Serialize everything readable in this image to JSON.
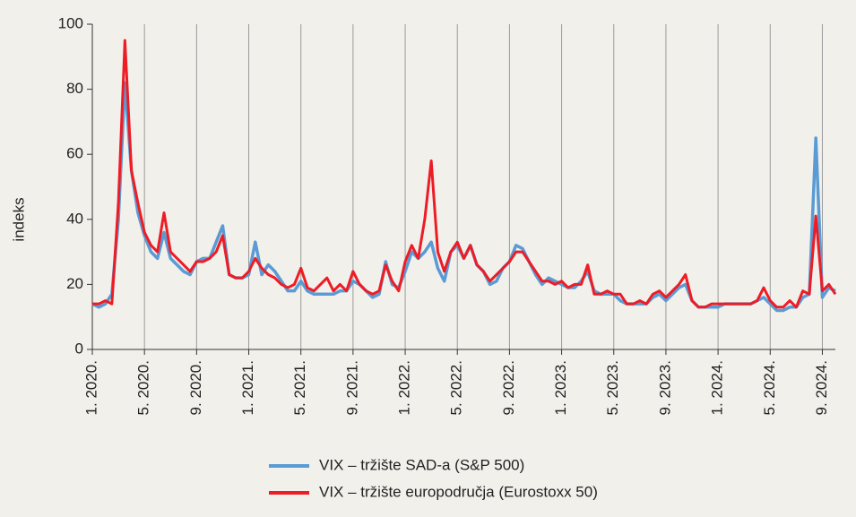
{
  "chart_data": {
    "type": "line",
    "ylabel": "indeks",
    "x": [
      0,
      0.5,
      1,
      1.5,
      2,
      2.5,
      3,
      3.5,
      4,
      4.5,
      5,
      5.5,
      6,
      6.5,
      7,
      7.5,
      8,
      8.5,
      9,
      9.5,
      10,
      10.5,
      11,
      11.5,
      12,
      12.5,
      13,
      13.5,
      14,
      14.5,
      15,
      15.5,
      16,
      16.5,
      17,
      17.5,
      18,
      18.5,
      19,
      19.5,
      20,
      20.5,
      21,
      21.5,
      22,
      22.5,
      23,
      23.5,
      24,
      24.5,
      25,
      25.5,
      26,
      26.5,
      27,
      27.5,
      28,
      28.5,
      29,
      29.5,
      30,
      30.5,
      31,
      31.5,
      32,
      32.5,
      33,
      33.5,
      34,
      34.5,
      35,
      35.5,
      36,
      36.5,
      37,
      37.5,
      38,
      38.5,
      39,
      39.5,
      40,
      40.5,
      41,
      41.5,
      42,
      42.5,
      43,
      43.5,
      44,
      44.5,
      45,
      45.5,
      46,
      46.5,
      47,
      47.5,
      48,
      48.5,
      49,
      49.5,
      50,
      50.5,
      51,
      51.5,
      52,
      52.5,
      53,
      53.5,
      54,
      54.5,
      55,
      55.5,
      56,
      56.5,
      57
    ],
    "series": [
      {
        "name": "VIX – tržište SAD-a (S&P 500)",
        "color": "#5b9bd5",
        "values": [
          14,
          13,
          14,
          17,
          40,
          82,
          55,
          42,
          35,
          30,
          28,
          36,
          28,
          26,
          24,
          23,
          27,
          28,
          28,
          33,
          38,
          23,
          22,
          22,
          23,
          33,
          23,
          26,
          24,
          21,
          18,
          18,
          21,
          18,
          17,
          17,
          17,
          17,
          18,
          18,
          21,
          20,
          18,
          16,
          17,
          27,
          20,
          19,
          24,
          30,
          28,
          30,
          33,
          25,
          21,
          30,
          32,
          28,
          32,
          26,
          24,
          20,
          21,
          25,
          27,
          32,
          31,
          27,
          23,
          20,
          22,
          21,
          20,
          19,
          19,
          21,
          24,
          18,
          17,
          17,
          17,
          15,
          14,
          14,
          14,
          14,
          16,
          17,
          15,
          17,
          19,
          20,
          15,
          13,
          13,
          13,
          13,
          14,
          14,
          14,
          14,
          14,
          15,
          16,
          14,
          12,
          12,
          13,
          13,
          16,
          17,
          65,
          16,
          19,
          18
        ]
      },
      {
        "name": "VIX – tržište europodručja (Eurostoxx 50)",
        "color": "#ee1c25",
        "values": [
          14,
          14,
          15,
          14,
          45,
          95,
          55,
          45,
          36,
          32,
          30,
          42,
          30,
          28,
          26,
          24,
          27,
          27,
          28,
          30,
          35,
          23,
          22,
          22,
          24,
          28,
          25,
          23,
          22,
          20,
          19,
          20,
          25,
          19,
          18,
          20,
          22,
          18,
          20,
          18,
          24,
          20,
          18,
          17,
          18,
          26,
          21,
          18,
          27,
          32,
          28,
          40,
          58,
          30,
          24,
          30,
          33,
          28,
          32,
          26,
          24,
          21,
          23,
          25,
          27,
          30,
          30,
          27,
          24,
          21,
          21,
          20,
          21,
          19,
          20,
          20,
          26,
          17,
          17,
          18,
          17,
          17,
          14,
          14,
          15,
          14,
          17,
          18,
          16,
          18,
          20,
          23,
          15,
          13,
          13,
          14,
          14,
          14,
          14,
          14,
          14,
          14,
          15,
          19,
          15,
          13,
          13,
          15,
          13,
          18,
          17,
          41,
          18,
          20,
          17
        ]
      }
    ],
    "xlim": [
      0,
      57
    ],
    "xticks": [
      {
        "value": 0,
        "label": "1. 2020."
      },
      {
        "value": 4,
        "label": "5. 2020."
      },
      {
        "value": 8,
        "label": "9. 2020."
      },
      {
        "value": 12,
        "label": "1. 2021."
      },
      {
        "value": 16,
        "label": "5. 2021."
      },
      {
        "value": 20,
        "label": "9. 2021."
      },
      {
        "value": 24,
        "label": "1. 2022."
      },
      {
        "value": 28,
        "label": "5. 2022."
      },
      {
        "value": 32,
        "label": "9. 2022."
      },
      {
        "value": 36,
        "label": "1. 2023."
      },
      {
        "value": 40,
        "label": "5. 2023."
      },
      {
        "value": 44,
        "label": "9. 2023."
      },
      {
        "value": 48,
        "label": "1. 2024."
      },
      {
        "value": 52,
        "label": "5. 2024."
      },
      {
        "value": 56,
        "label": "9. 2024."
      }
    ],
    "ylim": [
      0,
      100
    ],
    "yticks": [
      0,
      20,
      40,
      60,
      80,
      100
    ],
    "grid": "x"
  }
}
